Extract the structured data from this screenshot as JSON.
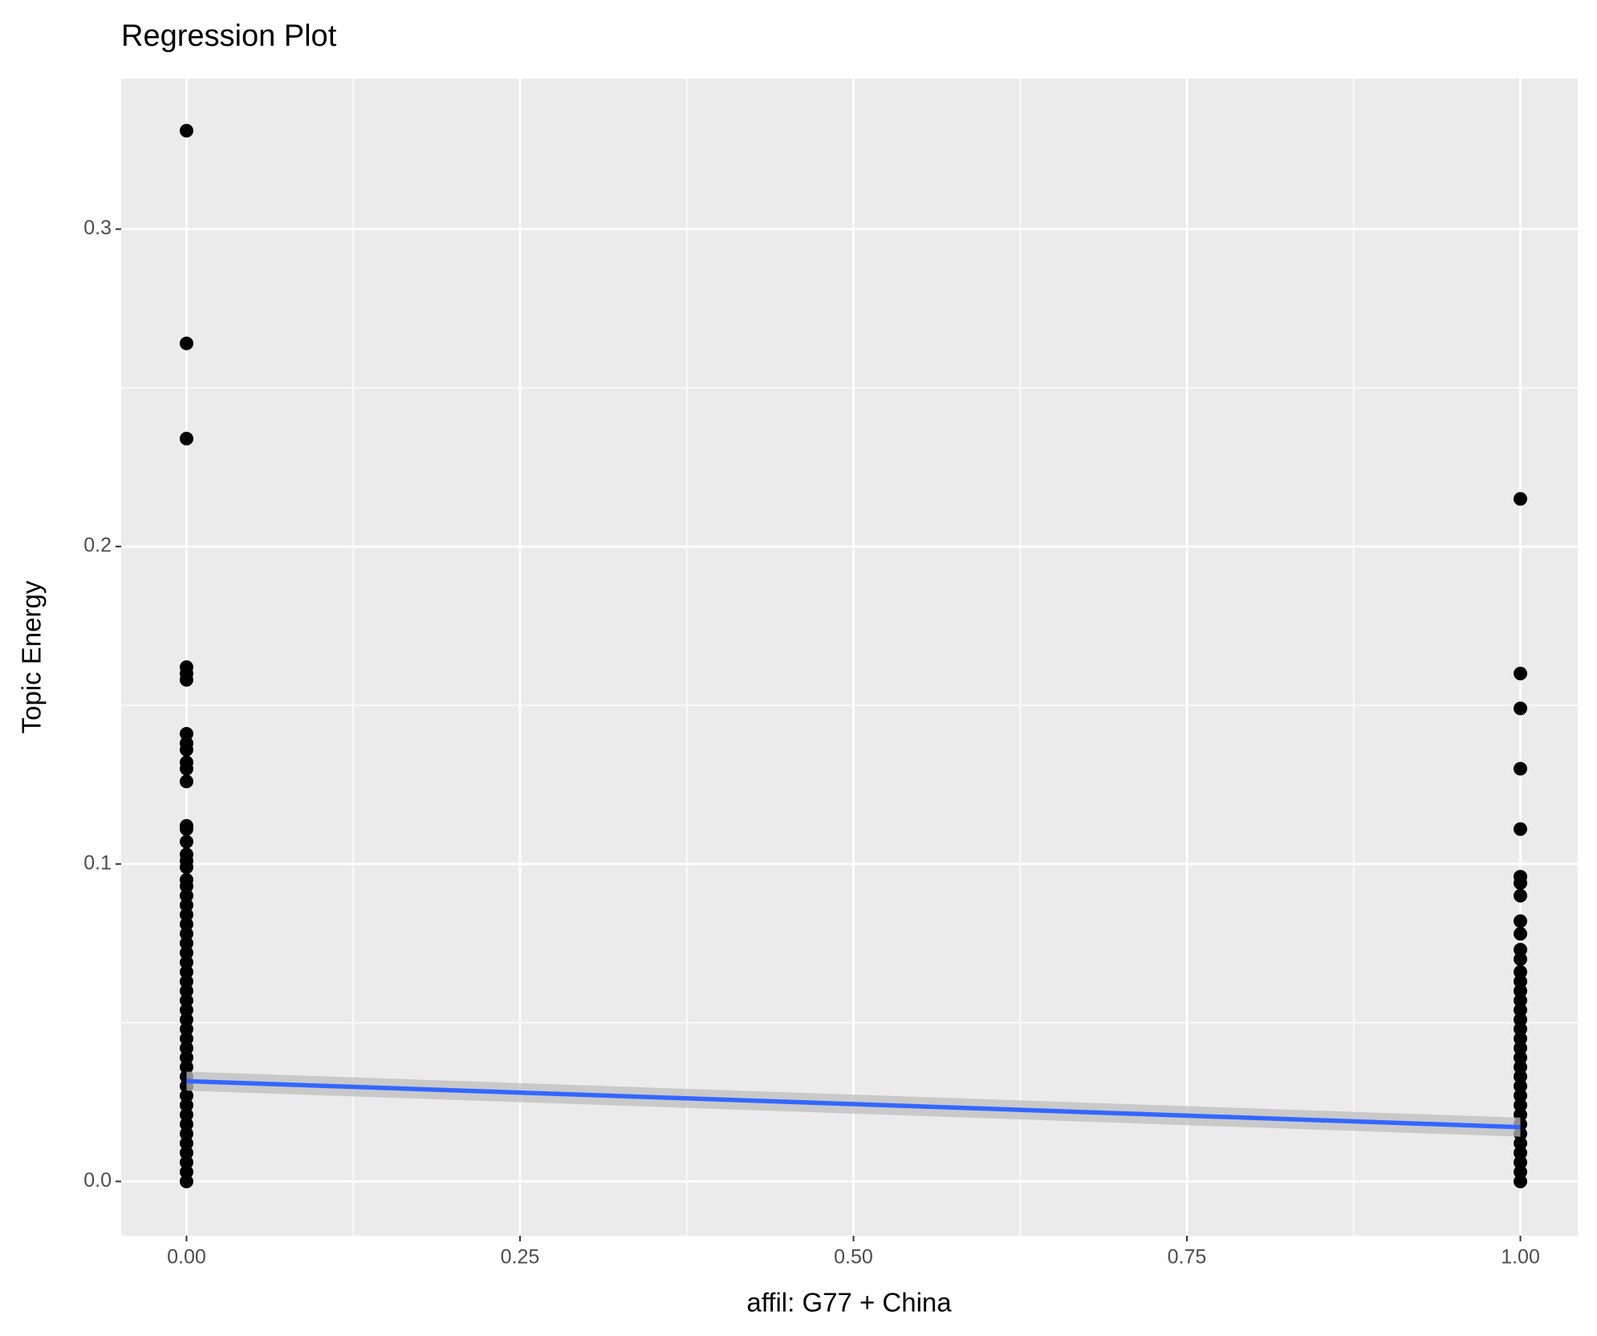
{
  "chart_data": {
    "type": "scatter",
    "title": "Regression Plot",
    "x_label": "affil: G77 + China",
    "y_label": "Topic Energy",
    "xlim": [
      -0.049,
      1.043
    ],
    "ylim": [
      -0.0171,
      0.3474
    ],
    "xticks": [
      {
        "value": 0,
        "label": "0.00"
      },
      {
        "value": 0.25,
        "label": "0.25"
      },
      {
        "value": 0.5,
        "label": "0.50"
      },
      {
        "value": 0.75,
        "label": "0.75"
      },
      {
        "value": 1,
        "label": "1.00"
      }
    ],
    "yticks": [
      {
        "value": 0,
        "label": "0.0"
      },
      0.1,
      0.2,
      0.3
    ],
    "x_minor_ticks": [
      0.125,
      0.375,
      0.625,
      0.875
    ],
    "y_minor_ticks": [
      0.05,
      0.15,
      0.25
    ],
    "grid": true,
    "color": "#000000",
    "x": [
      0,
      0,
      0,
      0,
      0,
      0,
      0,
      0,
      0,
      0,
      0,
      0,
      0,
      0,
      0,
      0,
      0,
      0,
      0,
      0,
      0,
      0,
      0,
      0,
      0,
      0,
      0,
      0,
      0,
      0,
      0,
      0,
      0,
      0,
      0,
      0,
      0,
      0,
      0,
      0,
      0,
      0,
      0,
      0,
      0,
      0,
      0,
      0,
      0,
      0,
      0,
      1,
      1,
      1,
      1,
      1,
      1,
      1,
      1,
      1,
      1,
      1,
      1,
      1,
      1,
      1,
      1,
      1,
      1,
      1,
      1,
      1,
      1,
      1,
      1,
      1,
      1,
      1,
      1,
      1,
      1,
      1,
      1,
      1,
      1,
      1
    ],
    "y": [
      0.331,
      0.264,
      0.234,
      0.162,
      0.16,
      0.158,
      0.141,
      0.138,
      0.136,
      0.132,
      0.13,
      0.126,
      0.112,
      0.111,
      0.107,
      0.103,
      0.101,
      0.099,
      0.095,
      0.093,
      0,
      0.003,
      0.006,
      0.009,
      0.012,
      0.015,
      0.018,
      0.021,
      0.024,
      0.027,
      0.03,
      0.033,
      0.036,
      0.039,
      0.042,
      0.045,
      0.048,
      0.051,
      0.054,
      0.057,
      0.06,
      0.063,
      0.066,
      0.069,
      0.072,
      0.075,
      0.078,
      0.081,
      0.084,
      0.087,
      0.09,
      0.215,
      0.16,
      0.149,
      0.13,
      0.111,
      0.096,
      0.094,
      0.09,
      0.082,
      0.078,
      0.073,
      0.07,
      0,
      0.003,
      0.006,
      0.009,
      0.012,
      0.015,
      0.018,
      0.021,
      0.024,
      0.027,
      0.03,
      0.033,
      0.036,
      0.039,
      0.042,
      0.045,
      0.048,
      0.051,
      0.054,
      0.057,
      0.06,
      0.063,
      0.066
    ],
    "regression": {
      "x": [
        0,
        1
      ],
      "y": [
        0.0316,
        0.0171
      ],
      "lower": [
        0.0286,
        0.0141
      ],
      "upper": [
        0.0346,
        0.0201
      ],
      "color": "#3366ff",
      "band_color": "#bdbdbd"
    }
  }
}
